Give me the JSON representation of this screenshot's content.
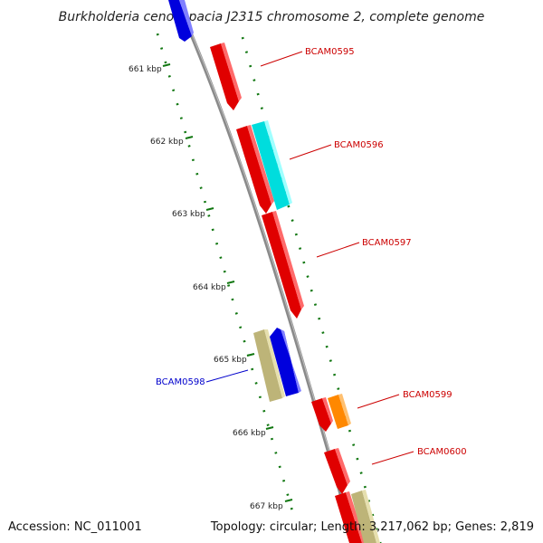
{
  "title": "Burkholderia cenocepacia J2315 chromosome 2, complete genome",
  "footer": {
    "accession": "Accession: NC_011001",
    "summary": "Topology: circular; Length: 3,217,062 bp; Genes: 2,819"
  },
  "kbp_ticks": [
    "661 kbp",
    "662 kbp",
    "663 kbp",
    "664 kbp",
    "665 kbp",
    "666 kbp",
    "667 kbp"
  ],
  "gene_labels": [
    {
      "name": "BCAM0595",
      "color": "#cc0000"
    },
    {
      "name": "BCAM0596",
      "color": "#cc0000"
    },
    {
      "name": "BCAM0597",
      "color": "#cc0000"
    },
    {
      "name": "BCAM0598",
      "color": "#0000cc"
    },
    {
      "name": "BCAM0599",
      "color": "#cc0000"
    },
    {
      "name": "BCAM0600",
      "color": "#cc0000"
    }
  ],
  "colors": {
    "red_gene": "#e00000",
    "blue_gene": "#0000dd",
    "cyan_gene": "#00dddd",
    "khaki_gene": "#bdb478",
    "orange_gene": "#ff8800",
    "backbone": "#888888",
    "tick": "#117711"
  }
}
